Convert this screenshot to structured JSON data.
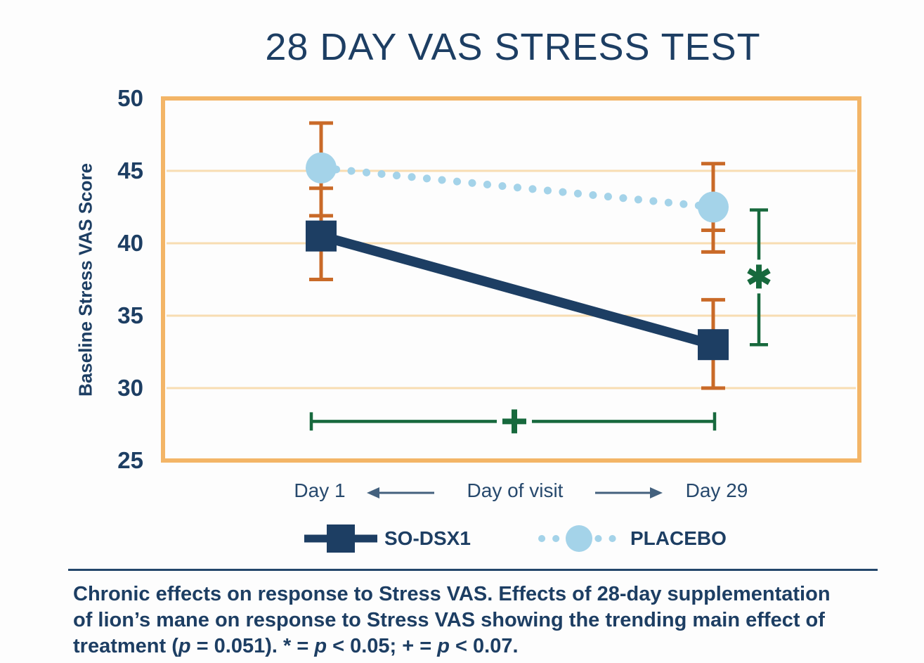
{
  "chart_data": {
    "type": "line",
    "title": "28 DAY VAS STRESS TEST",
    "ylabel": "Baseline Stress VAS Score",
    "xlabel": "Day of visit",
    "categories": [
      "Day 1",
      "Day 29"
    ],
    "ylim": [
      25,
      50
    ],
    "yticks": [
      50,
      45,
      40,
      35,
      30,
      25
    ],
    "gridlines_at": [
      45,
      40,
      35,
      30
    ],
    "legend_position": "bottom",
    "series": [
      {
        "name": "SO-DSX1",
        "marker": "square",
        "line_style": "solid",
        "color": "#1d3e63",
        "values": [
          40.5,
          33.0
        ],
        "error_low": [
          37.5,
          30.0
        ],
        "error_high": [
          43.8,
          36.1
        ]
      },
      {
        "name": "PLACEBO",
        "marker": "circle",
        "line_style": "dotted",
        "color": "#a4d3e9",
        "values": [
          45.2,
          42.5
        ],
        "error_low": [
          41.9,
          39.4
        ],
        "error_high": [
          48.3,
          45.5
        ]
      }
    ],
    "error_marks": [
      {
        "x_index": 0,
        "stem": [
          37.5,
          48.3
        ],
        "caps": [
          48.3,
          43.8,
          41.9,
          37.5
        ]
      },
      {
        "x_index": 1,
        "stem": [
          39.4,
          45.5
        ],
        "caps": [
          45.5,
          40.9,
          39.4
        ]
      },
      {
        "x_index": 1,
        "stem": [
          30.0,
          36.1
        ],
        "caps": [
          36.1,
          30.0
        ]
      }
    ],
    "annotations": [
      {
        "kind": "vertical_significance_bracket",
        "symbol": "*",
        "meaning": "p < 0.05",
        "value_top": 42.3,
        "value_bottom": 33.0,
        "symbol_value": 37.7
      },
      {
        "kind": "horizontal_significance_bracket",
        "symbol": "+",
        "meaning": "p < 0.07",
        "value": 27.7,
        "spans": [
          "Day 1",
          "Day 29"
        ]
      }
    ],
    "colors": {
      "navy": "#1d3e63",
      "light_blue": "#a4d3e9",
      "error_bar": "#c96a28",
      "frame": "#f3b567",
      "gridline": "#f8ddb2",
      "green": "#17693d",
      "arrow": "#44617e"
    }
  },
  "x_axis": {
    "left_label": "Day 1",
    "center_label": "Day of visit",
    "right_label": "Day 29"
  },
  "legend": {
    "items": [
      {
        "label": "SO-DSX1"
      },
      {
        "label": "PLACEBO"
      }
    ]
  },
  "caption": {
    "lines": [
      "Chronic effects on response to Stress VAS. Effects of 28-day supplementation",
      "of lion’s mane on response to Stress VAS showing the trending main effect of",
      "treatment (p = 0.051). * = p < 0.05; + = p < 0.07."
    ]
  }
}
